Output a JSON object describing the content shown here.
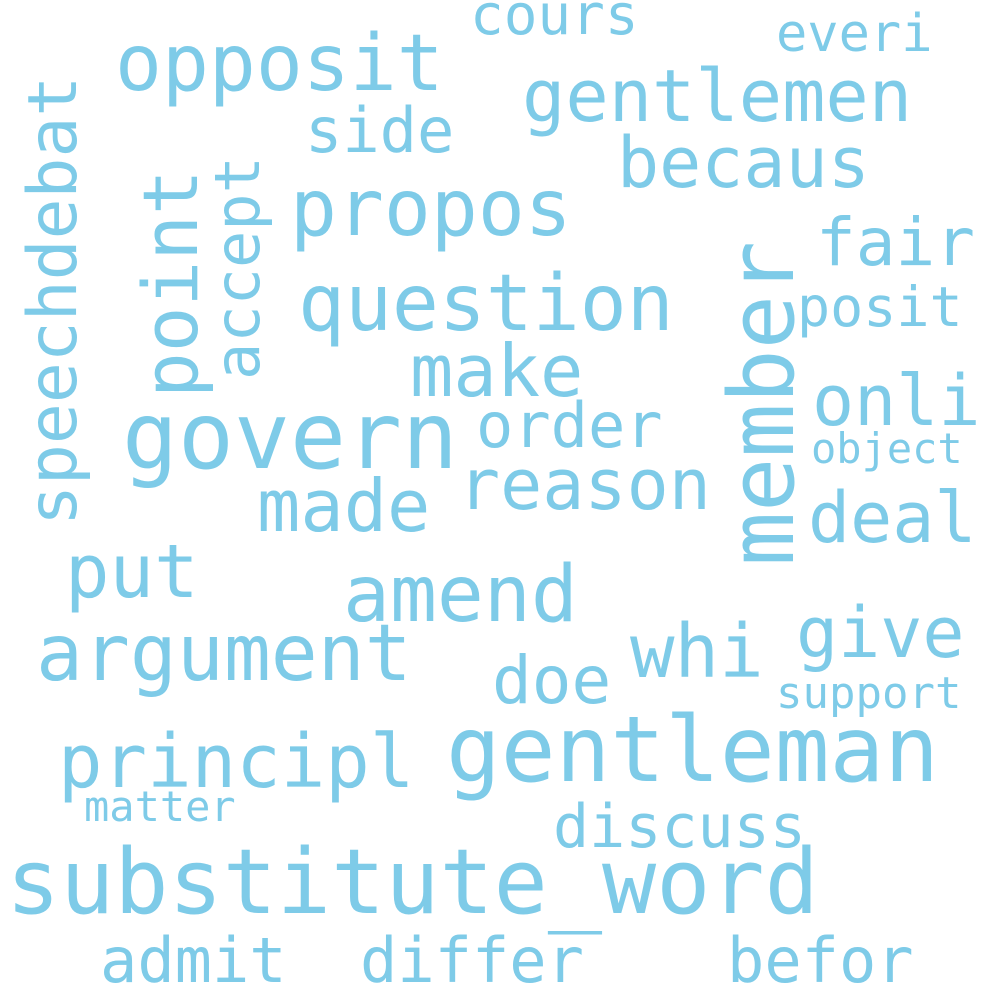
{
  "color": "#7ecbe8",
  "words": {
    "substitute_word": "substitute_word",
    "gentleman": "gentleman",
    "govern": "govern",
    "member": "member",
    "argument": "argument",
    "propos": "propos",
    "question": "question",
    "opposit": "opposit",
    "gentlemen": "gentlemen",
    "principl": "principl",
    "amend": "amend",
    "speechdebat": "speechdebat",
    "point": "point",
    "reason": "reason",
    "becaus": "becaus",
    "make": "make",
    "made": "made",
    "put": "put",
    "whi": "whi",
    "order": "order",
    "side": "side",
    "accept": "accept",
    "deal": "deal",
    "onli": "onli",
    "give": "give",
    "fair": "fair",
    "posit": "posit",
    "doe": "doe",
    "discuss": "discuss",
    "differ": "differ",
    "befor": "befor",
    "admit": "admit",
    "cours": "cours",
    "everi": "everi",
    "object": "object",
    "support": "support",
    "matter": "matter"
  }
}
